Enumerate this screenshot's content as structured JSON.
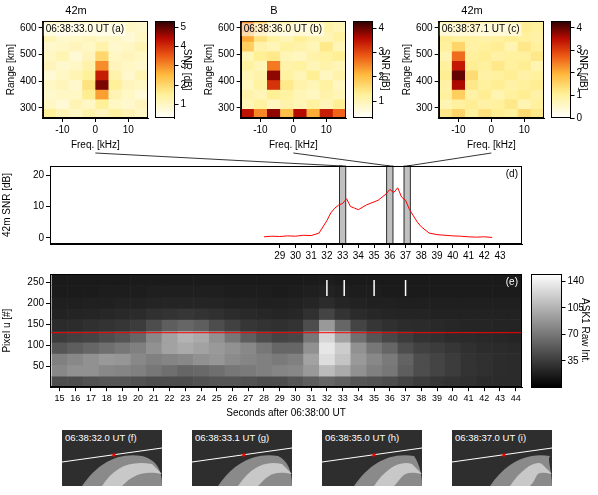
{
  "chart_data": [
    {
      "type": "heatmap",
      "title": "42m",
      "annotation": "06:38:33.0 UT (a)",
      "xlabel": "Freq. [kHz]",
      "ylabel": "Range [km]",
      "color": "hot",
      "x": [
        -14,
        -10,
        -6,
        -2,
        2,
        6,
        10,
        14
      ],
      "y": [
        280,
        316,
        352,
        388,
        424,
        460,
        496,
        532,
        568,
        604
      ],
      "cells": [
        [
          1.5,
          1.2,
          1,
          1.3,
          1.1,
          1.4,
          1.2,
          1
        ],
        [
          1,
          0.8,
          1.2,
          1,
          1.5,
          1,
          0.9,
          1.1
        ],
        [
          0.9,
          1,
          1,
          1.6,
          2.8,
          1.2,
          1,
          0.8
        ],
        [
          1,
          1.1,
          0.9,
          1.8,
          4.8,
          1.5,
          1.1,
          1
        ],
        [
          0.8,
          1,
          1.2,
          1.5,
          4.2,
          1.3,
          0.9,
          1.2
        ],
        [
          1.1,
          0.9,
          1,
          1.3,
          3.0,
          1.1,
          1,
          0.9
        ],
        [
          1,
          1.2,
          0.8,
          1.1,
          2.0,
          1,
          1.1,
          1
        ],
        [
          0.9,
          1,
          1.1,
          1,
          1.3,
          0.9,
          1,
          1.2
        ],
        [
          1.2,
          0.9,
          1,
          1.1,
          1,
          1,
          0.8,
          1
        ],
        [
          1,
          1.1,
          0.9,
          1,
          1.2,
          1,
          1,
          0.9
        ]
      ],
      "xlim": [
        -16,
        16
      ],
      "xticks": [
        -10,
        0,
        10
      ],
      "ylim": [
        262,
        625
      ],
      "yticks": [
        300,
        400,
        500,
        600
      ],
      "colorbar": {
        "label": "SNR [dB]",
        "range": [
          0.3,
          5.3
        ],
        "ticks": [
          1,
          2,
          3,
          4,
          5
        ]
      }
    },
    {
      "type": "heatmap",
      "title": "B",
      "annotation": "06:38:36.0 UT (b)",
      "xlabel": "Freq. [kHz]",
      "ylabel": "Range [km]",
      "color": "hot",
      "x": [
        -14,
        -10,
        -6,
        -2,
        2,
        6,
        10,
        14
      ],
      "y": [
        280,
        316,
        352,
        388,
        424,
        460,
        496,
        532,
        568,
        604
      ],
      "cells": [
        [
          3.5,
          2.5,
          3.8,
          2,
          3.6,
          2.2,
          3.4,
          2.8
        ],
        [
          1,
          1.2,
          0.9,
          1.1,
          1,
          1.2,
          1,
          1.3
        ],
        [
          1.1,
          1,
          1.3,
          1.2,
          1,
          0.9,
          1.1,
          1
        ],
        [
          0.9,
          1.2,
          3.2,
          1.4,
          1.1,
          1,
          1.2,
          0.9
        ],
        [
          1,
          1.1,
          3.8,
          1.2,
          1,
          1.3,
          0.9,
          1.1
        ],
        [
          1.2,
          1,
          2.6,
          1.1,
          1.2,
          1,
          1.1,
          1
        ],
        [
          1,
          1.3,
          1.4,
          1,
          0.9,
          1.1,
          1.2,
          1.3
        ],
        [
          1.8,
          1.1,
          1,
          1.2,
          1.1,
          1,
          1.4,
          1
        ],
        [
          2.2,
          1.5,
          1.2,
          1,
          1.3,
          1.1,
          1,
          1.2
        ],
        [
          2.5,
          1.8,
          1.1,
          1.3,
          1,
          1.2,
          1.1,
          1
        ]
      ],
      "xlim": [
        -16,
        16
      ],
      "xticks": [
        -10,
        0,
        10
      ],
      "ylim": [
        262,
        625
      ],
      "yticks": [
        300,
        400,
        500,
        600
      ],
      "colorbar": {
        "label": "SNR [dB]",
        "range": [
          0.3,
          4.3
        ],
        "ticks": [
          1,
          2,
          3,
          4
        ]
      }
    },
    {
      "type": "heatmap",
      "title": "42m",
      "annotation": "06:38:37.1 UT (c)",
      "xlabel": "Freq. [kHz]",
      "ylabel": "Range [km]",
      "color": "hot",
      "x": [
        -14,
        -10,
        -6,
        -2,
        2,
        6,
        10,
        14
      ],
      "y": [
        280,
        316,
        352,
        388,
        424,
        460,
        496,
        532,
        568,
        604
      ],
      "cells": [
        [
          1.2,
          1.5,
          1,
          1.3,
          1.1,
          1,
          1.4,
          1.2
        ],
        [
          0.8,
          1,
          1.1,
          0.9,
          1,
          1.2,
          0.8,
          1
        ],
        [
          1,
          1.6,
          0.9,
          1.1,
          0.8,
          1,
          1.1,
          0.9
        ],
        [
          0.9,
          3.6,
          1.2,
          1,
          1.1,
          0.9,
          1,
          1.1
        ],
        [
          1.1,
          4.0,
          1.4,
          0.9,
          1,
          1.1,
          0.9,
          1
        ],
        [
          1,
          3.4,
          1.1,
          1,
          1.2,
          1,
          1.1,
          0.8
        ],
        [
          0.8,
          2.6,
          1,
          1.1,
          0.9,
          1,
          1,
          1.2
        ],
        [
          1,
          1.5,
          0.9,
          1,
          1.1,
          0.8,
          1.2,
          1
        ],
        [
          1.1,
          1,
          1,
          0.9,
          1,
          1.1,
          1,
          0.9
        ],
        [
          0.9,
          1.1,
          1.2,
          1,
          0.9,
          1,
          1.1,
          1
        ]
      ],
      "xlim": [
        -16,
        16
      ],
      "xticks": [
        -10,
        0,
        10
      ],
      "ylim": [
        262,
        625
      ],
      "yticks": [
        300,
        400,
        500,
        600
      ],
      "colorbar": {
        "label": "SNR [dB]",
        "range": [
          0,
          4.3
        ],
        "ticks": [
          0,
          1,
          2,
          3,
          4
        ]
      }
    },
    {
      "type": "line",
      "annotation": "(d)",
      "ylabel": "42m SNR [dB]",
      "color": "#ff0000",
      "x": [
        28,
        28.5,
        29,
        29.5,
        30,
        30.5,
        31,
        31.5,
        32,
        32.25,
        32.5,
        32.75,
        33,
        33.25,
        33.5,
        33.75,
        34,
        34.5,
        35,
        35.25,
        35.5,
        35.75,
        36,
        36.25,
        36.5,
        36.75,
        37,
        37.25,
        37.5,
        37.75,
        38,
        38.5,
        39,
        39.5,
        40,
        40.5,
        41,
        41.5,
        42,
        42.5
      ],
      "values": [
        0.3,
        0.5,
        0.4,
        0.6,
        0.5,
        0.8,
        0.7,
        1.5,
        5.5,
        8,
        9.5,
        10.5,
        11,
        12.5,
        10,
        9.5,
        9,
        10.5,
        11.5,
        12,
        13,
        14,
        15.5,
        14.5,
        16,
        13,
        12,
        9,
        7,
        5,
        3.5,
        1.5,
        1,
        0.8,
        0.6,
        0.5,
        0.3,
        0.2,
        0.3,
        0.1
      ],
      "xlim": [
        14.4,
        44.4
      ],
      "xticks": [
        29,
        30,
        31,
        32,
        33,
        34,
        35,
        36,
        37,
        38,
        39,
        40,
        41,
        42,
        43
      ],
      "ylim": [
        -2,
        23
      ],
      "yticks": [
        0,
        10,
        20
      ],
      "highlights": [
        [
          32.8,
          33.2
        ],
        [
          35.8,
          36.2
        ],
        [
          36.9,
          37.3
        ]
      ]
    },
    {
      "type": "heatmap",
      "annotation": "(e)",
      "xlabel": "Seconds after 06:38:00 UT",
      "ylabel": "Pixel u [#]",
      "color": "gray",
      "x": [
        15,
        16,
        17,
        18,
        19,
        20,
        21,
        22,
        23,
        24,
        25,
        26,
        27,
        28,
        29,
        30,
        31,
        32,
        33,
        34,
        35,
        36,
        37,
        38,
        39,
        40,
        41,
        42,
        43,
        44
      ],
      "y": [
        13.5,
        40.5,
        67.5,
        94.5,
        121.5,
        148.5,
        175.5,
        202.5,
        229.5,
        256.5
      ],
      "cells": [
        [
          45,
          45,
          48,
          50,
          50,
          48,
          45,
          45,
          45,
          48,
          50,
          50,
          48,
          45,
          45,
          50,
          55,
          60,
          55,
          50,
          48,
          45,
          40,
          35,
          32,
          30,
          28,
          25,
          25,
          25
        ],
        [
          80,
          85,
          85,
          80,
          78,
          75,
          70,
          65,
          60,
          62,
          65,
          70,
          72,
          75,
          78,
          80,
          90,
          110,
          100,
          85,
          75,
          70,
          55,
          45,
          40,
          35,
          30,
          28,
          26,
          25
        ],
        [
          75,
          80,
          85,
          90,
          88,
          80,
          75,
          78,
          80,
          85,
          88,
          82,
          78,
          75,
          72,
          75,
          95,
          130,
          115,
          90,
          80,
          72,
          58,
          45,
          40,
          35,
          30,
          28,
          26,
          25
        ],
        [
          50,
          55,
          60,
          65,
          70,
          75,
          85,
          95,
          100,
          95,
          90,
          85,
          80,
          70,
          60,
          60,
          85,
          135,
          120,
          85,
          70,
          60,
          45,
          38,
          35,
          32,
          28,
          26,
          25,
          24
        ],
        [
          35,
          38,
          40,
          45,
          50,
          60,
          80,
          95,
          105,
          100,
          85,
          70,
          55,
          45,
          40,
          42,
          70,
          125,
          95,
          65,
          50,
          42,
          35,
          30,
          28,
          26,
          25,
          24,
          23,
          22
        ],
        [
          25,
          26,
          28,
          30,
          32,
          35,
          45,
          55,
          60,
          55,
          45,
          38,
          32,
          30,
          28,
          30,
          45,
          90,
          60,
          40,
          32,
          28,
          26,
          25,
          24,
          23,
          22,
          22,
          21,
          21
        ],
        [
          20,
          21,
          22,
          23,
          24,
          25,
          28,
          30,
          32,
          30,
          28,
          26,
          24,
          23,
          22,
          23,
          28,
          40,
          30,
          25,
          23,
          22,
          21,
          21,
          20,
          20,
          20,
          20,
          20,
          20
        ],
        [
          18,
          18,
          19,
          19,
          20,
          20,
          21,
          22,
          22,
          22,
          21,
          20,
          20,
          19,
          19,
          20,
          22,
          25,
          22,
          20,
          19,
          19,
          18,
          18,
          18,
          18,
          18,
          18,
          18,
          18
        ],
        [
          16,
          16,
          16,
          17,
          17,
          17,
          18,
          18,
          18,
          18,
          18,
          17,
          17,
          17,
          16,
          17,
          18,
          20,
          18,
          17,
          17,
          16,
          16,
          16,
          16,
          16,
          16,
          16,
          16,
          16
        ],
        [
          15,
          15,
          15,
          15,
          15,
          16,
          16,
          16,
          16,
          16,
          16,
          15,
          15,
          15,
          15,
          15,
          16,
          17,
          16,
          15,
          15,
          15,
          15,
          15,
          15,
          15,
          15,
          15,
          15,
          15
        ]
      ],
      "xlim": [
        14.4,
        44.4
      ],
      "xticks": [
        15,
        16,
        17,
        18,
        19,
        20,
        21,
        22,
        23,
        24,
        25,
        26,
        27,
        28,
        29,
        30,
        31,
        32,
        33,
        34,
        35,
        36,
        37,
        38,
        39,
        40,
        41,
        42,
        43,
        44
      ],
      "ylim": [
        0,
        270
      ],
      "yticks": [
        50,
        100,
        150,
        200,
        250
      ],
      "colorbar": {
        "label": "ASK1 Raw Int.",
        "range": [
          0,
          150
        ],
        "ticks": [
          35,
          70,
          105,
          140
        ]
      },
      "reference_line": 130,
      "marker_times": [
        32.0,
        33.1,
        35.0,
        37.0
      ]
    }
  ],
  "images": [
    {
      "label": "06:38:32.0 UT (f)"
    },
    {
      "label": "06:38:33.1 UT (g)"
    },
    {
      "label": "06:38:35.0 UT (h)"
    },
    {
      "label": "06:38:37.0 UT (i)"
    }
  ]
}
